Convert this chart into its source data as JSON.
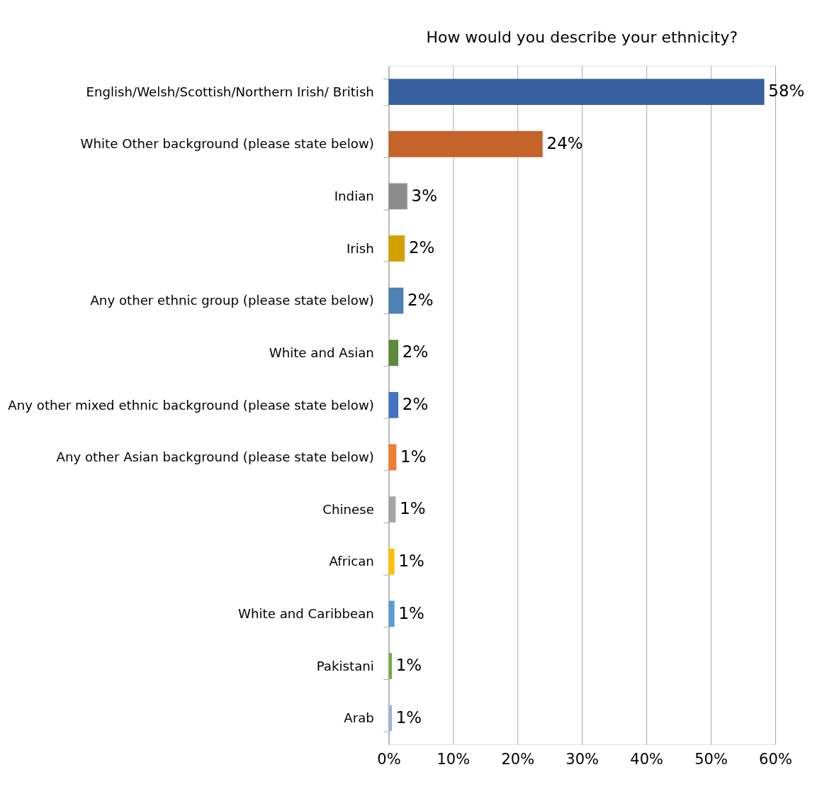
{
  "chart_data": {
    "type": "bar",
    "orientation": "horizontal",
    "title": "How would you describe your ethnicity?",
    "categories": [
      "English/Welsh/Scottish/Northern Irish/ British",
      "White Other background (please state below)",
      "Indian",
      "Irish",
      "Any other ethnic group (please state below)",
      "White and Asian",
      "Any other mixed ethnic background (please state below)",
      "Any other Asian background (please state below)",
      "Chinese",
      "African",
      "White and Caribbean",
      "Pakistani",
      "Arab"
    ],
    "values": [
      58.3,
      23.9,
      2.9,
      2.5,
      2.3,
      1.5,
      1.5,
      1.2,
      1.1,
      0.9,
      0.9,
      0.5,
      0.5
    ],
    "value_labels": [
      "58%",
      "24%",
      "3%",
      "2%",
      "2%",
      "2%",
      "2%",
      "1%",
      "1%",
      "1%",
      "1%",
      "1%",
      "1%"
    ],
    "colors": [
      "#365f9f",
      "#c4632a",
      "#8c8c8c",
      "#d4a000",
      "#4e81b4",
      "#5a8a3a",
      "#4472c4",
      "#ed7d31",
      "#a5a5a5",
      "#ffc000",
      "#5b9bd5",
      "#70ad47",
      "#a0b1d8"
    ],
    "xlim": [
      0,
      60
    ],
    "xticks": [
      {
        "value": 0,
        "label": "0%"
      },
      {
        "value": 10,
        "label": "10%"
      },
      {
        "value": 20,
        "label": "20%"
      },
      {
        "value": 30,
        "label": "30%"
      },
      {
        "value": 40,
        "label": "40%"
      },
      {
        "value": 50,
        "label": "50%"
      },
      {
        "value": 60,
        "label": "60%"
      }
    ],
    "grid": "x"
  }
}
